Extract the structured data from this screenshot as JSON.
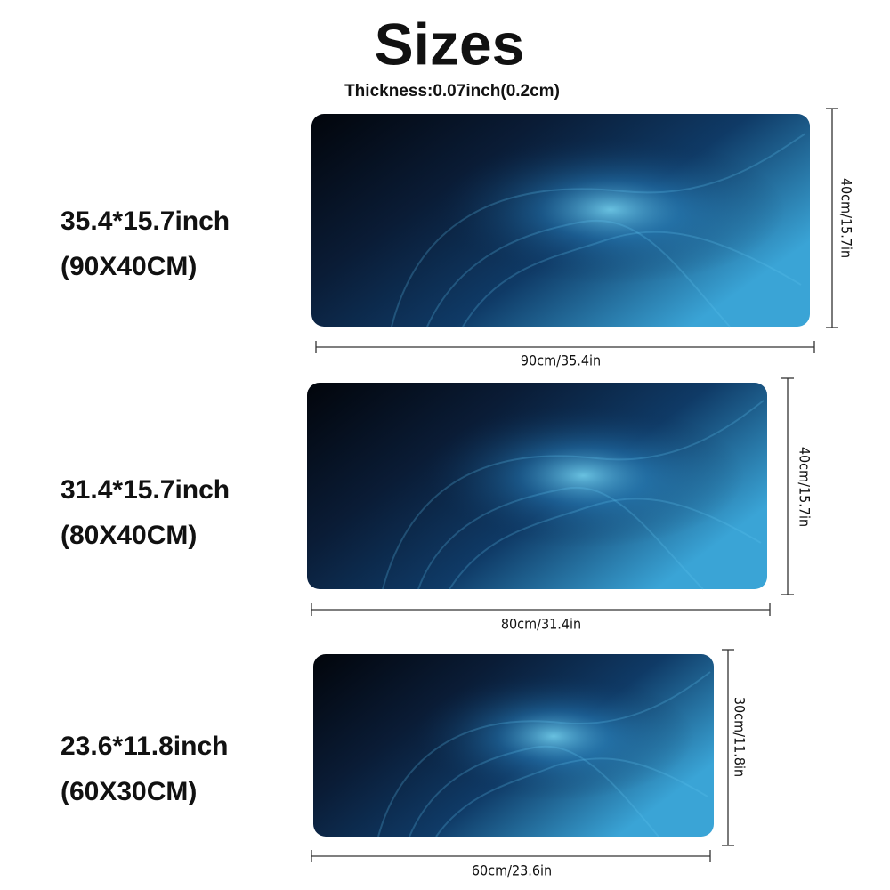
{
  "header": {
    "title": "Sizes",
    "thickness": "Thickness:0.07inch(0.2cm)"
  },
  "sizes": [
    {
      "inch": "35.4*15.7inch",
      "cm": "(90X40CM)",
      "width_label": "90cm/35.4in",
      "height_label": "40cm/15.7in"
    },
    {
      "inch": "31.4*15.7inch",
      "cm": "(80X40CM)",
      "width_label": "80cm/31.4in",
      "height_label": "40cm/15.7in"
    },
    {
      "inch": "23.6*11.8inch",
      "cm": "(60X30CM)",
      "width_label": "60cm/23.6in",
      "height_label": "30cm/11.8in"
    }
  ]
}
